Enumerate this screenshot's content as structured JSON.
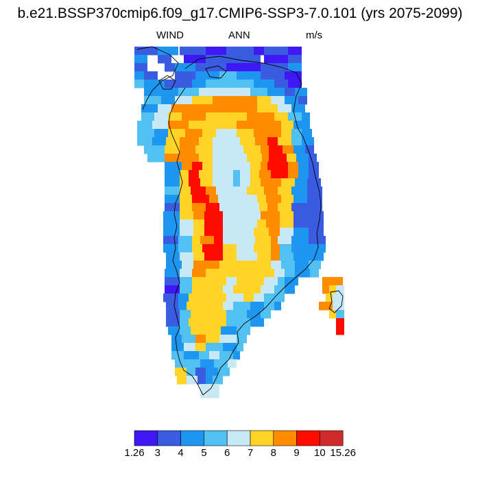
{
  "title": "b.e21.BSSP370cmip6.f09_g17.CMIP6-SSP3-7.0.101 (yrs 2075-2099)",
  "subtitle": {
    "variable": "WIND",
    "period": "ANN",
    "units": "m/s"
  },
  "colors": {
    "bins": [
      "#3d18f5",
      "#3a5ce0",
      "#1e96f0",
      "#52c1f2",
      "#c8e8f6",
      "#ffd428",
      "#ff8c00",
      "#ff0b00",
      "#d02b2b"
    ],
    "outline": "#000000",
    "background": "#ffffff"
  },
  "legend": {
    "labels": [
      "1.26",
      "3",
      "4",
      "5",
      "6",
      "7",
      "8",
      "9",
      "10",
      "15.26"
    ]
  },
  "map_region": "Greenland (annual mean surface wind speed)"
}
